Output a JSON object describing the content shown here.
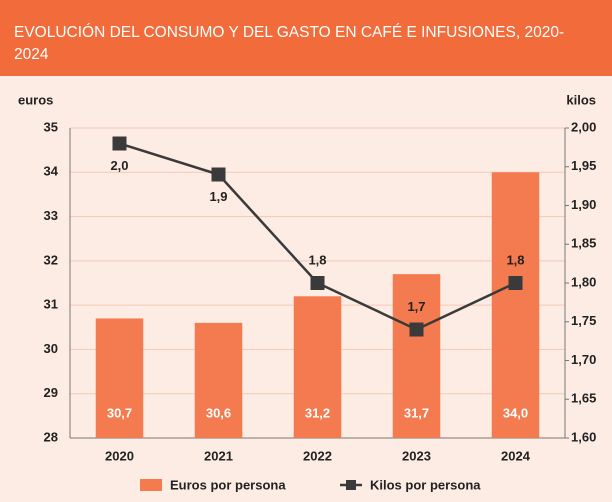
{
  "chart_data": {
    "type": "bar_line",
    "title": "EVOLUCIÓN DEL CONSUMO Y DEL GASTO EN CAFÉ E INFUSIONES, 2020-2024",
    "y_label": "euros",
    "y2_label": "kilos",
    "categories": [
      "2020",
      "2021",
      "2022",
      "2023",
      "2024"
    ],
    "ylim": [
      28,
      35
    ],
    "yticks": [
      28,
      29,
      30,
      31,
      32,
      33,
      34,
      35
    ],
    "y2lim": [
      1.6,
      2.0
    ],
    "y2ticks": [
      {
        "value": 1.6,
        "label": "1,60"
      },
      {
        "value": 1.65,
        "label": "1,65"
      },
      {
        "value": 1.7,
        "label": "1,70"
      },
      {
        "value": 1.75,
        "label": "1,75"
      },
      {
        "value": 1.8,
        "label": "1,80"
      },
      {
        "value": 1.85,
        "label": "1,85"
      },
      {
        "value": 1.9,
        "label": "1,90"
      },
      {
        "value": 1.95,
        "label": "1,95"
      },
      {
        "value": 2.0,
        "label": "2,00"
      }
    ],
    "grid": true,
    "series": [
      {
        "name": "Euros por persona",
        "type": "bar",
        "color": "#f47b4f",
        "values": [
          30.7,
          30.6,
          31.2,
          31.7,
          34.0
        ],
        "value_labels": [
          "30,7",
          "30,6",
          "31,2",
          "31,7",
          "34,0"
        ]
      },
      {
        "name": "Kilos por persona",
        "type": "line",
        "axis": "y2",
        "color": "#3a3a3a",
        "values": [
          1.98,
          1.94,
          1.8,
          1.74,
          1.8
        ],
        "value_labels": [
          "2,0",
          "1,9",
          "1,8",
          "1,7",
          "1,8"
        ]
      }
    ]
  }
}
